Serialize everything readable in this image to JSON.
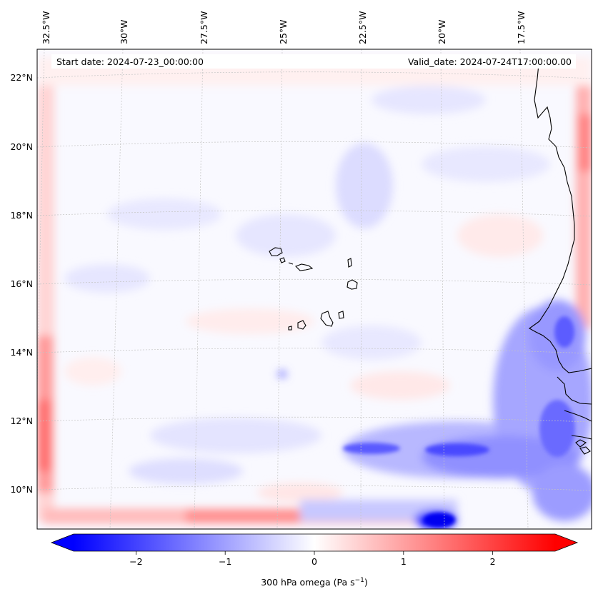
{
  "chart_data": {
    "type": "heatmap",
    "projection": "Lambert conformal (curved graticule)",
    "start_date_label": "Start date: 2024-07-23_00:00:00",
    "valid_date_label": "Valid_date: 2024-07-24T17:00:00.00",
    "lon_labels": [
      "32.5°W",
      "30°W",
      "27.5°W",
      "25°W",
      "22.5°W",
      "20°W",
      "17.5°W"
    ],
    "lat_labels": [
      "22°N",
      "20°N",
      "18°N",
      "16°N",
      "14°N",
      "12°N",
      "10°N"
    ],
    "extent": {
      "lon": [
        -32.6,
        -15.4
      ],
      "lat": [
        8.8,
        22.7
      ]
    },
    "colorbar": {
      "label": "300 hPa omega (Pa s",
      "label_unit_exponent": "−1",
      "label_close": ")",
      "range": [
        -2.7,
        2.7
      ],
      "ticks": [
        -2,
        -1,
        0,
        1,
        2
      ],
      "tick_labels": [
        "−2",
        "−1",
        "0",
        "1",
        "2"
      ],
      "extend": "both",
      "cmap": "bwr",
      "colors": {
        "low": "#0000ff",
        "mid": "#ffffff",
        "high": "#ff0000"
      }
    },
    "features": [
      {
        "name": "Strong ascent band, southern boundary",
        "value": -2.5
      },
      {
        "name": "Ascent over West African coast (Senegal/Guinea)",
        "value": -1.5
      },
      {
        "name": "Boundary relaxation zone, western edge",
        "value": 1.6
      },
      {
        "name": "Boundary relaxation zone, eastern edge",
        "value": 1.3
      }
    ],
    "land_features": [
      "Cape Verde islands",
      "West African coastline"
    ]
  }
}
